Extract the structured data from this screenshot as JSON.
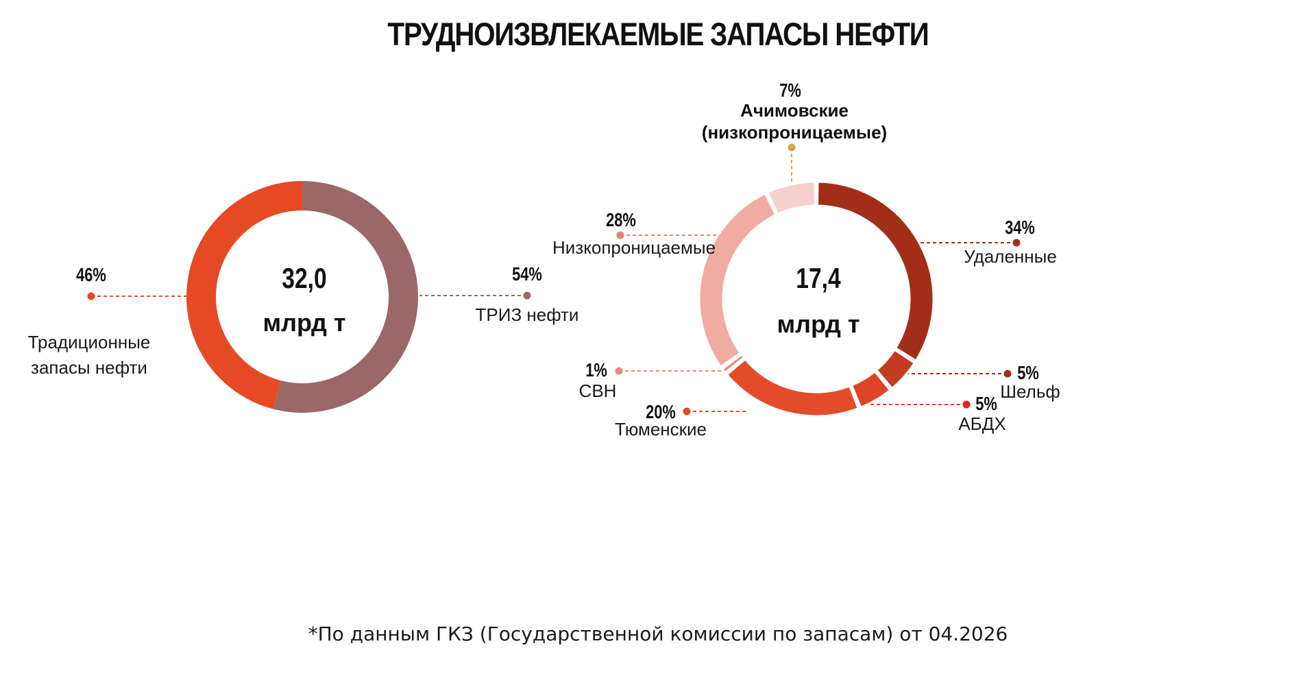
{
  "title": "ТРУДНОИЗВЛЕКАЕМЫЕ ЗАПАСЫ НЕФТИ",
  "footnote": "*По данным ГКЗ (Государственной комиссии по запасам) от 04.2026",
  "chart_data": [
    {
      "type": "pie",
      "donut": true,
      "total_value": "32,0",
      "total_unit": "млрд т",
      "slices": [
        {
          "label_lines": [
            "ТРИЗ нефти"
          ],
          "percent": 54,
          "percent_label": "54%",
          "color": "#9a6868"
        },
        {
          "label_lines": [
            "Традиционные",
            "запасы нефти"
          ],
          "percent": 46,
          "percent_label": "46%",
          "color": "#e54a25"
        }
      ]
    },
    {
      "type": "pie",
      "donut": true,
      "total_value": "17,4",
      "total_unit": "млрд т",
      "slices": [
        {
          "label_lines": [
            "Удаленные"
          ],
          "percent": 34,
          "percent_label": "34%",
          "color": "#a12f18"
        },
        {
          "label_lines": [
            "Шельф"
          ],
          "percent": 5,
          "percent_label": "5%",
          "color": "#c33c22"
        },
        {
          "label_lines": [
            "АБДХ"
          ],
          "percent": 5,
          "percent_label": "5%",
          "color": "#df4424",
          "dot_color": "#e8201a"
        },
        {
          "label_lines": [
            "Тюменские"
          ],
          "percent": 20,
          "percent_label": "20%",
          "color": "#e44b2b"
        },
        {
          "label_lines": [
            "СВН"
          ],
          "percent": 1,
          "percent_label": "1%",
          "color": "#ec8a78"
        },
        {
          "label_lines": [
            "Низкопроницаемые"
          ],
          "percent": 28,
          "percent_label": "28%",
          "color": "#f0aba3"
        },
        {
          "label_lines": [
            "Ачимовские",
            "(низкопроницаемые)"
          ],
          "percent": 7,
          "percent_label": "7%",
          "color": "#f6d0cc"
        }
      ]
    }
  ]
}
